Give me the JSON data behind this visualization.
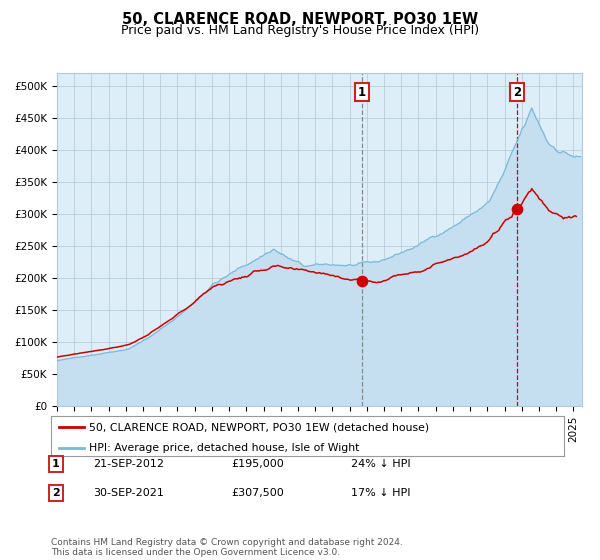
{
  "title": "50, CLARENCE ROAD, NEWPORT, PO30 1EW",
  "subtitle": "Price paid vs. HM Land Registry's House Price Index (HPI)",
  "ylabel_ticks": [
    "£0",
    "£50K",
    "£100K",
    "£150K",
    "£200K",
    "£250K",
    "£300K",
    "£350K",
    "£400K",
    "£450K",
    "£500K"
  ],
  "ytick_vals": [
    0,
    50000,
    100000,
    150000,
    200000,
    250000,
    300000,
    350000,
    400000,
    450000,
    500000
  ],
  "xlim_start": 1995.0,
  "xlim_end": 2025.5,
  "ylim": [
    0,
    520000
  ],
  "hpi_color": "#7ab8d9",
  "hpi_fill_color": "#c5dff0",
  "price_color": "#cc0000",
  "sale1_date": 2012.72,
  "sale1_price": 195000,
  "sale2_date": 2021.75,
  "sale2_price": 307500,
  "legend_house": "50, CLARENCE ROAD, NEWPORT, PO30 1EW (detached house)",
  "legend_hpi": "HPI: Average price, detached house, Isle of Wight",
  "note1_num": "1",
  "note1_date": "21-SEP-2012",
  "note1_price": "£195,000",
  "note1_hpi": "24% ↓ HPI",
  "note2_num": "2",
  "note2_date": "30-SEP-2021",
  "note2_price": "£307,500",
  "note2_hpi": "17% ↓ HPI",
  "copyright": "Contains HM Land Registry data © Crown copyright and database right 2024.\nThis data is licensed under the Open Government Licence v3.0.",
  "bg_color": "#ddeef9",
  "grid_color": "#b0c8d8",
  "title_fontsize": 10.5,
  "subtitle_fontsize": 9,
  "tick_fontsize": 7.5
}
